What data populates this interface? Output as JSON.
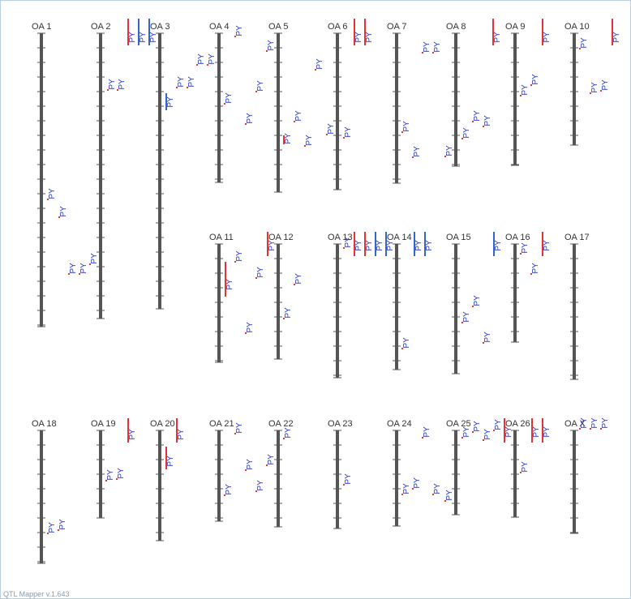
{
  "chromosomes": [
    {
      "name": "OA 1",
      "qtls": [
        "PY",
        "PY",
        "PY",
        "PY",
        "PY"
      ]
    },
    {
      "name": "OA 2",
      "qtls": [
        "PY",
        "PY",
        "PY",
        "PY",
        "PY"
      ]
    },
    {
      "name": "OA 3",
      "qtls": [
        "PY",
        "PY",
        "PY"
      ]
    },
    {
      "name": "OA 4",
      "qtls": [
        "PY",
        "PY",
        "PY",
        "PY",
        "PY"
      ]
    },
    {
      "name": "OA 5",
      "qtls": [
        "PY",
        "PY",
        "PY",
        "PY",
        "PY",
        "PY"
      ]
    },
    {
      "name": "OA 6",
      "qtls": [
        "PY",
        "PY",
        "PY",
        "PY"
      ]
    },
    {
      "name": "OA 7",
      "qtls": [
        "PY",
        "PY",
        "PY",
        "PY"
      ]
    },
    {
      "name": "OA 8",
      "qtls": [
        "PY",
        "PY",
        "PY",
        "PY",
        "PY"
      ]
    },
    {
      "name": "OA 9",
      "qtls": [
        "PY",
        "PY",
        "PY"
      ]
    },
    {
      "name": "OA 10",
      "qtls": [
        "PY",
        "PY",
        "PY",
        "PY"
      ]
    },
    {
      "name": "OA 11",
      "qtls": [
        "PY",
        "PY",
        "PY",
        "PY"
      ]
    },
    {
      "name": "OA 12",
      "qtls": [
        "PY",
        "PY",
        "PY"
      ]
    },
    {
      "name": "OA 13",
      "qtls": [
        "PY",
        "PY",
        "PY",
        "PY",
        "PY"
      ]
    },
    {
      "name": "OA 14",
      "qtls": [
        "PY",
        "PY",
        "PY"
      ]
    },
    {
      "name": "OA 15",
      "qtls": [
        "PY",
        "PY",
        "PY",
        "PY"
      ]
    },
    {
      "name": "OA 16",
      "qtls": [
        "PY",
        "PY",
        "PY"
      ]
    },
    {
      "name": "OA 17",
      "qtls": []
    },
    {
      "name": "OA 18",
      "qtls": [
        "PY",
        "PY"
      ]
    },
    {
      "name": "OA 19",
      "qtls": [
        "PY",
        "PY",
        "PY"
      ]
    },
    {
      "name": "OA 20",
      "qtls": [
        "PY",
        "PY"
      ]
    },
    {
      "name": "OA 21",
      "qtls": [
        "PY",
        "PY",
        "PY"
      ]
    },
    {
      "name": "OA 22",
      "qtls": [
        "PY",
        "PY",
        "PY"
      ]
    },
    {
      "name": "OA 23",
      "qtls": [
        "PY"
      ]
    },
    {
      "name": "OA 24",
      "qtls": [
        "PY",
        "PY",
        "PY",
        "PY"
      ]
    },
    {
      "name": "OA 25",
      "qtls": [
        "PY",
        "PY",
        "PY",
        "PY",
        "PY",
        "PY"
      ]
    },
    {
      "name": "OA 26",
      "qtls": [
        "PY",
        "PY",
        "PY"
      ]
    },
    {
      "name": "OA X",
      "qtls": [
        "PY",
        "PY",
        "PY"
      ]
    }
  ],
  "footer": "QTL Mapper v.1.643"
}
